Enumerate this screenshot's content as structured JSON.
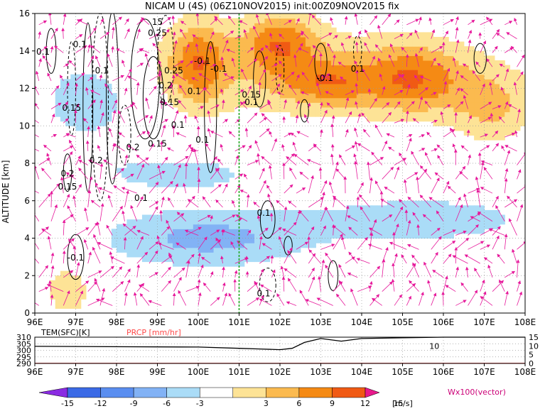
{
  "chart_data": [
    {
      "type": "heatmap",
      "title": "NICAM U (4S) (06Z10NOV2015) init:00Z09NOV2015 fix",
      "ylabel": "ALTITUDE [km]",
      "xlim": [
        96,
        108
      ],
      "ylim": [
        0,
        16
      ],
      "x_ticks": [
        "96E",
        "97E",
        "98E",
        "99E",
        "100E",
        "101E",
        "102E",
        "103E",
        "104E",
        "105E",
        "106E",
        "107E",
        "108E"
      ],
      "y_ticks": [
        "0",
        "2",
        "4",
        "6",
        "8",
        "10",
        "12",
        "14",
        "16"
      ],
      "grid": true,
      "section_lon": 101.0,
      "contour_labels": [
        {
          "text": "0.1",
          "lon": 96.2,
          "alt": 13.8
        },
        {
          "text": "0.1",
          "lon": 97.1,
          "alt": 14.2
        },
        {
          "text": "-0.1",
          "lon": 97.6,
          "alt": 12.8
        },
        {
          "text": "0.15",
          "lon": 96.9,
          "alt": 10.8
        },
        {
          "text": "0.2",
          "lon": 98.4,
          "alt": 8.7
        },
        {
          "text": "0.2",
          "lon": 97.5,
          "alt": 8.0
        },
        {
          "text": "0.2",
          "lon": 96.8,
          "alt": 7.3
        },
        {
          "text": "0.15",
          "lon": 96.8,
          "alt": 6.6
        },
        {
          "text": "0.1",
          "lon": 98.6,
          "alt": 6.0
        },
        {
          "text": "0.15",
          "lon": 99.0,
          "alt": 8.9
        },
        {
          "text": "0.1",
          "lon": 99.5,
          "alt": 9.9
        },
        {
          "text": "0.15",
          "lon": 99.3,
          "alt": 11.1
        },
        {
          "text": "0.2",
          "lon": 99.2,
          "alt": 12.0
        },
        {
          "text": "0.25",
          "lon": 99.4,
          "alt": 12.8
        },
        {
          "text": "0.25",
          "lon": 99.0,
          "alt": 14.8
        },
        {
          "text": "15",
          "lon": 99.0,
          "alt": 15.4
        },
        {
          "text": "0.1",
          "lon": 100.1,
          "alt": 9.1
        },
        {
          "text": "0.1",
          "lon": 99.9,
          "alt": 11.7
        },
        {
          "text": "-0.1",
          "lon": 100.1,
          "alt": 13.3
        },
        {
          "text": "-0.1",
          "lon": 100.5,
          "alt": 12.9
        },
        {
          "text": "0.15",
          "lon": 101.3,
          "alt": 11.5
        },
        {
          "text": "0.1",
          "lon": 101.3,
          "alt": 11.1
        },
        {
          "text": "-0.1",
          "lon": 103.1,
          "alt": 12.4
        },
        {
          "text": "0.1",
          "lon": 103.9,
          "alt": 12.9
        },
        {
          "text": "0.1",
          "lon": 101.6,
          "alt": 5.2
        },
        {
          "text": "0.1",
          "lon": 101.6,
          "alt": 0.9
        },
        {
          "text": "-0.1",
          "lon": 97.0,
          "alt": 2.8
        }
      ],
      "colorbar": {
        "ticks": [
          "-15",
          "-12",
          "-9",
          "-6",
          "-3",
          "3",
          "6",
          "9",
          "12",
          "15"
        ],
        "unit": "[m/s]",
        "colors": [
          "#8a2be2",
          "#3b6ae6",
          "#5a8ef0",
          "#82b2f5",
          "#aadcf7",
          "#ffffff",
          "#fde396",
          "#fbba4f",
          "#f58a14",
          "#f05a14",
          "#cc1a1a",
          "#e8198c"
        ]
      },
      "vector_label": "Wx100(vector)",
      "colors": {
        "contour": "#000000",
        "vector": "#e6199b",
        "section_line": "#22aa22"
      }
    },
    {
      "type": "line",
      "xlim": [
        96,
        108
      ],
      "x_ticks": [
        "96E",
        "97E",
        "98E",
        "99E",
        "100E",
        "101E",
        "102E",
        "103E",
        "104E",
        "105E",
        "106E",
        "107E",
        "108E"
      ],
      "left_ticks": [
        "310",
        "305",
        "300",
        "295",
        "290"
      ],
      "right_ticks": [
        "15",
        "10",
        "5",
        "0"
      ],
      "series": [
        {
          "name": "TEM(SFC)[K]",
          "color": "#000000",
          "x": [
            96,
            100,
            101,
            101.5,
            102,
            102.3,
            102.6,
            103,
            103.5,
            104,
            105,
            106,
            108
          ],
          "y": [
            303,
            302.5,
            301.5,
            301,
            300.5,
            301.5,
            306,
            309,
            307,
            309,
            309.5,
            310,
            310
          ]
        },
        {
          "name": "PRCP [mm/hr]",
          "color": "#ff4a4a",
          "x": [
            96,
            108
          ],
          "y": [
            0.1,
            0.1
          ]
        }
      ],
      "annotation": {
        "text": "10",
        "lon": 105.9,
        "value": 10
      }
    }
  ]
}
